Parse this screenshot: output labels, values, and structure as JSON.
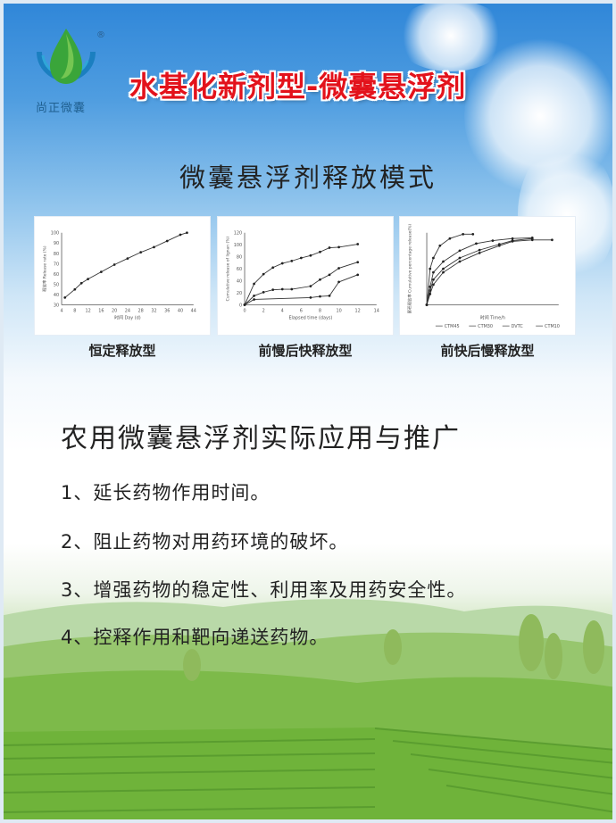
{
  "brand": {
    "name": "尚正微囊",
    "registered": "®"
  },
  "title": "水基化新剂型-微囊悬浮剂",
  "subtitle": "微囊悬浮剂释放模式",
  "charts": [
    {
      "label": "恒定释放型",
      "xlabel": "时间 Day (d)",
      "ylabel": "释放率 Release rate (%)",
      "xticks": [
        "4",
        "8",
        "12",
        "16",
        "20",
        "24",
        "28",
        "32",
        "36",
        "40",
        "44"
      ],
      "yticks": [
        "30",
        "40",
        "50",
        "60",
        "70",
        "80",
        "90",
        "100"
      ],
      "series": [
        {
          "x": [
            5,
            8,
            10,
            12,
            16,
            20,
            24,
            28,
            32,
            36,
            40,
            42
          ],
          "y": [
            37,
            45,
            51,
            55,
            62,
            69,
            75,
            81,
            86,
            92,
            98,
            100
          ]
        }
      ]
    },
    {
      "label": "前慢后快释放型",
      "xlabel": "Elapsed time (days)",
      "ylabel": "Cumulative release of lignan (%)",
      "xticks": [
        "0",
        "2",
        "4",
        "6",
        "8",
        "10",
        "12",
        "14"
      ],
      "yticks": [
        "0",
        "20",
        "40",
        "60",
        "80",
        "100",
        "120"
      ],
      "series": [
        {
          "x": [
            0,
            1,
            2,
            3,
            4,
            5,
            6,
            7,
            8,
            9,
            10,
            12
          ],
          "y": [
            0,
            35,
            51,
            62,
            69,
            73,
            78,
            82,
            88,
            95,
            96,
            101
          ]
        },
        {
          "x": [
            0,
            1,
            2,
            3,
            4,
            5,
            7,
            8,
            9,
            10,
            12
          ],
          "y": [
            0,
            15,
            21,
            25,
            26,
            26,
            31,
            42,
            50,
            61,
            71
          ]
        },
        {
          "x": [
            0,
            1,
            7,
            8,
            9,
            10,
            12
          ],
          "y": [
            0,
            9,
            12,
            14,
            15,
            38,
            50
          ]
        }
      ]
    },
    {
      "label": "前快后慢释放型",
      "xlabel": "时间 Time/h",
      "ylabel": "累积释放率 Cumulative percentage release(%)",
      "legend": [
        "CTM45",
        "CTM30",
        "DVTC",
        "CTM10"
      ],
      "series": [
        {
          "x": [
            0,
            5,
            10,
            20,
            35,
            55,
            70
          ],
          "y": [
            0,
            50,
            65,
            82,
            92,
            98,
            98
          ]
        },
        {
          "x": [
            0,
            5,
            10,
            25,
            50,
            75,
            100,
            130,
            160
          ],
          "y": [
            0,
            25,
            45,
            60,
            75,
            85,
            89,
            92,
            93
          ]
        },
        {
          "x": [
            0,
            5,
            10,
            25,
            50,
            80,
            110,
            130,
            160
          ],
          "y": [
            0,
            20,
            35,
            50,
            65,
            76,
            84,
            89,
            92
          ]
        },
        {
          "x": [
            0,
            5,
            10,
            25,
            50,
            80,
            110,
            130,
            160,
            190
          ],
          "y": [
            0,
            15,
            28,
            45,
            60,
            72,
            82,
            88,
            90,
            90
          ]
        }
      ]
    }
  ],
  "section_title": "农用微囊悬浮剂实际应用与推广",
  "items": [
    "1、延长药物作用时间。",
    "2、阻止药物对用药环境的破坏。",
    "3、增强药物的稳定性、利用率及用药安全性。",
    "4、控释作用和靶向递送药物。"
  ],
  "colors": {
    "title": "#e3121b",
    "sky": "#2f86d8",
    "field": "#6fb33a"
  }
}
